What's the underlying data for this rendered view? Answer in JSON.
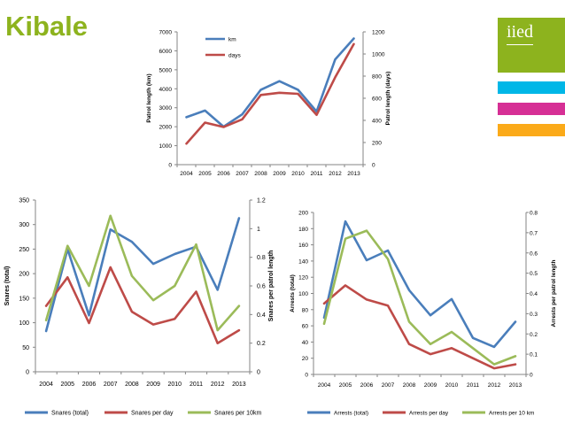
{
  "page": {
    "title": "Kibale",
    "logo_text": "iied",
    "colors": {
      "title": "#8db31e",
      "logo_bg": "#8db31e",
      "stripes": [
        "#00b7e7",
        "#d62f95",
        "#fbaa19"
      ]
    }
  },
  "chart_data": [
    {
      "id": "patrol",
      "type": "line",
      "title": "",
      "categories": [
        "2004",
        "2005",
        "2006",
        "2007",
        "2008",
        "2009",
        "2010",
        "2011",
        "2012",
        "2013"
      ],
      "series": [
        {
          "name": "km",
          "axis": "left",
          "color": "#4a7ebb",
          "values": [
            2500,
            2850,
            2000,
            2650,
            3950,
            4400,
            3950,
            2800,
            5550,
            6650
          ]
        },
        {
          "name": "days",
          "axis": "right",
          "color": "#be4b48",
          "values": [
            190,
            380,
            340,
            410,
            630,
            650,
            640,
            450,
            790,
            1090
          ]
        }
      ],
      "ylabel": "Patrol length (km)",
      "ylim": [
        0,
        7000
      ],
      "yticks": [
        0,
        1000,
        2000,
        3000,
        4000,
        5000,
        6000,
        7000
      ],
      "y2label": "Patrol length (days)",
      "y2lim": [
        0,
        1200
      ],
      "y2ticks": [
        0,
        200,
        400,
        600,
        800,
        1000,
        1200
      ],
      "legend": "inside top-left"
    },
    {
      "id": "snares",
      "type": "line",
      "title": "",
      "categories": [
        "2004",
        "2005",
        "2006",
        "2007",
        "2008",
        "2009",
        "2010",
        "2011",
        "2012",
        "2013"
      ],
      "series": [
        {
          "name": "Snares (total)",
          "axis": "left",
          "color": "#4a7ebb",
          "values": [
            83,
            250,
            115,
            290,
            265,
            220,
            240,
            255,
            167,
            313
          ]
        },
        {
          "name": "Snares per day",
          "axis": "right",
          "color": "#be4b48",
          "values": [
            0.46,
            0.66,
            0.34,
            0.73,
            0.42,
            0.33,
            0.37,
            0.56,
            0.2,
            0.29
          ]
        },
        {
          "name": "Snares per 10km",
          "axis": "right",
          "color": "#9bbb59",
          "values": [
            0.36,
            0.88,
            0.6,
            1.09,
            0.67,
            0.5,
            0.6,
            0.89,
            0.29,
            0.46
          ]
        }
      ],
      "ylabel": "Snares (total)",
      "ylim": [
        0,
        350
      ],
      "yticks": [
        0,
        50,
        100,
        150,
        200,
        250,
        300,
        350
      ],
      "y2label": "Snares per patrol length",
      "y2lim": [
        0,
        1.2
      ],
      "y2ticks": [
        "0",
        "0.2",
        "0.4",
        "0.6",
        "0.8",
        "1",
        "1.2"
      ],
      "legend": "bottom"
    },
    {
      "id": "arrests",
      "type": "line",
      "title": "",
      "categories": [
        "2004",
        "2005",
        "2006",
        "2007",
        "2008",
        "2009",
        "2010",
        "2011",
        "2012",
        "2013"
      ],
      "series": [
        {
          "name": "Arrests (total)",
          "axis": "left",
          "color": "#4a7ebb",
          "values": [
            70,
            189,
            141,
            153,
            104,
            73,
            93,
            45,
            34,
            65
          ]
        },
        {
          "name": "Arrests per day",
          "axis": "right",
          "color": "#be4b48",
          "values": [
            0.35,
            0.44,
            0.37,
            0.34,
            0.15,
            0.1,
            0.13,
            0.08,
            0.03,
            0.05
          ]
        },
        {
          "name": "Arrests per 10 km",
          "axis": "right",
          "color": "#9bbb59",
          "values": [
            0.25,
            0.67,
            0.71,
            0.57,
            0.26,
            0.15,
            0.21,
            0.13,
            0.05,
            0.09
          ]
        }
      ],
      "ylabel": "Arrests (total)",
      "ylim": [
        0,
        200
      ],
      "yticks": [
        0,
        20,
        40,
        60,
        80,
        100,
        120,
        140,
        160,
        180,
        200
      ],
      "y2label": "Arrests per patrol length",
      "y2lim": [
        0,
        0.8
      ],
      "y2ticks": [
        "0",
        "0.1",
        "0.2",
        "0.3",
        "0.4",
        "0.5",
        "0.6",
        "0.7",
        "0.8"
      ],
      "legend": "bottom"
    }
  ]
}
